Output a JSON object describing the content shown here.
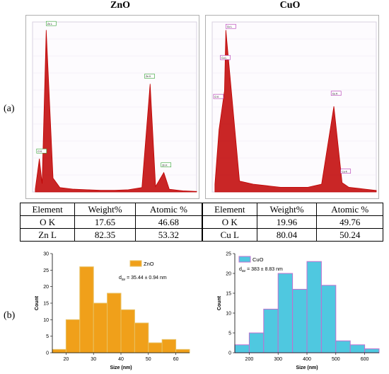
{
  "panel_labels": {
    "a": "(a)",
    "b": "(b)"
  },
  "titles": {
    "zno": "ZnO",
    "cuo": "CuO"
  },
  "tables": {
    "zno": {
      "header": [
        "Element",
        "Weight%",
        "Atomic %"
      ],
      "rows": [
        [
          "O K",
          "17.65",
          "46.68"
        ],
        [
          "Zn L",
          "82.35",
          "53.32"
        ]
      ]
    },
    "cuo": {
      "header": [
        "Element",
        "Weight%",
        "Atomic %"
      ],
      "rows": [
        [
          "O K",
          "19.96",
          "49.76"
        ],
        [
          "Cu L",
          "80.04",
          "50.24"
        ]
      ]
    }
  },
  "colors": {
    "spectrum": "#c00000",
    "zno_bar": "#f0a01a",
    "zno_bar_edge": "#e8c060",
    "cuo_bar": "#4fc8e0",
    "cuo_bar_edge": "#c070d0",
    "zno_peak_label": "#30a030",
    "cuo_peak_label": "#b030b0"
  },
  "chart_data": [
    {
      "type": "line",
      "id": "zno-eds",
      "title": "ZnO",
      "x": [
        0.2,
        0.5,
        0.7,
        1.0,
        1.5,
        2.0,
        3.0,
        4.0,
        5.0,
        6.0,
        7.0,
        8.0,
        8.6,
        9.0,
        9.6,
        10.0,
        11.0,
        12.0
      ],
      "y": [
        0.05,
        0.6,
        0.15,
        2.92,
        0.25,
        0.08,
        0.05,
        0.04,
        0.03,
        0.03,
        0.04,
        0.08,
        1.95,
        0.1,
        0.35,
        0.05,
        0.02,
        0.01
      ],
      "peak_labels": [
        "O K",
        "Zn L",
        "Zn K",
        "Zn K"
      ],
      "xlim": [
        0,
        12
      ]
    },
    {
      "type": "line",
      "id": "cuo-eds",
      "title": "CuO",
      "x": [
        0.2,
        0.5,
        0.9,
        1.0,
        2.0,
        3.0,
        4.0,
        5.0,
        6.0,
        7.0,
        8.0,
        8.9,
        9.5,
        10.0,
        11.0,
        12.0
      ],
      "y": [
        0.05,
        0.4,
        0.65,
        1.04,
        0.07,
        0.05,
        0.04,
        0.03,
        0.03,
        0.03,
        0.05,
        0.55,
        0.06,
        0.03,
        0.02,
        0.01
      ],
      "peak_labels": [
        "O K",
        "Cu L",
        "Cu L",
        "Cu K",
        "Cu K"
      ],
      "xlim": [
        0,
        12
      ]
    },
    {
      "type": "bar",
      "id": "zno-hist",
      "legend": "ZnO",
      "annotation": "d = 35.44 ± 0.94 nm",
      "annotation_sub": "av",
      "xlabel": "Size (nm)",
      "ylabel": "Count",
      "bin_left": [
        15,
        20,
        25,
        30,
        35,
        40,
        45,
        50,
        55,
        60
      ],
      "bin_width": 5,
      "values": [
        1,
        10,
        26,
        15,
        18,
        13,
        9,
        3,
        4,
        1
      ],
      "xlim": [
        15,
        65
      ],
      "ylim": [
        0,
        30
      ],
      "xticks": [
        20,
        30,
        40,
        50,
        60
      ],
      "yticks": [
        0,
        5,
        10,
        15,
        20,
        25,
        30
      ]
    },
    {
      "type": "bar",
      "id": "cuo-hist",
      "legend": "CuO",
      "annotation": "d = 383 ± 8.83 nm",
      "annotation_sub": "av",
      "xlabel": "Size (nm)",
      "ylabel": "Count",
      "bin_left": [
        150,
        200,
        250,
        300,
        350,
        400,
        450,
        500,
        550,
        600
      ],
      "bin_width": 50,
      "values": [
        2,
        5,
        11,
        20,
        16,
        23,
        17,
        3,
        2,
        1
      ],
      "xlim": [
        150,
        650
      ],
      "ylim": [
        0,
        25
      ],
      "xticks": [
        200,
        300,
        400,
        500,
        600
      ],
      "yticks": [
        0,
        5,
        10,
        15,
        20,
        25
      ]
    }
  ]
}
